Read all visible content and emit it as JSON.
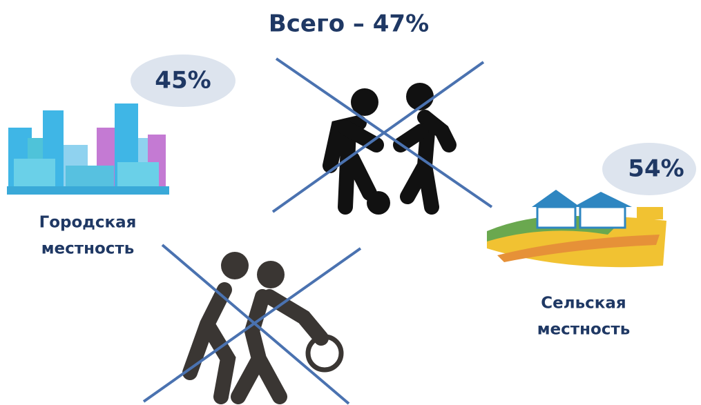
{
  "title": "Всего – 47%",
  "urban": {
    "percent": "45%",
    "label": [
      "Городская",
      "местность"
    ]
  },
  "rural": {
    "percent": "54%",
    "label": [
      "Сельская",
      "местность"
    ]
  }
}
